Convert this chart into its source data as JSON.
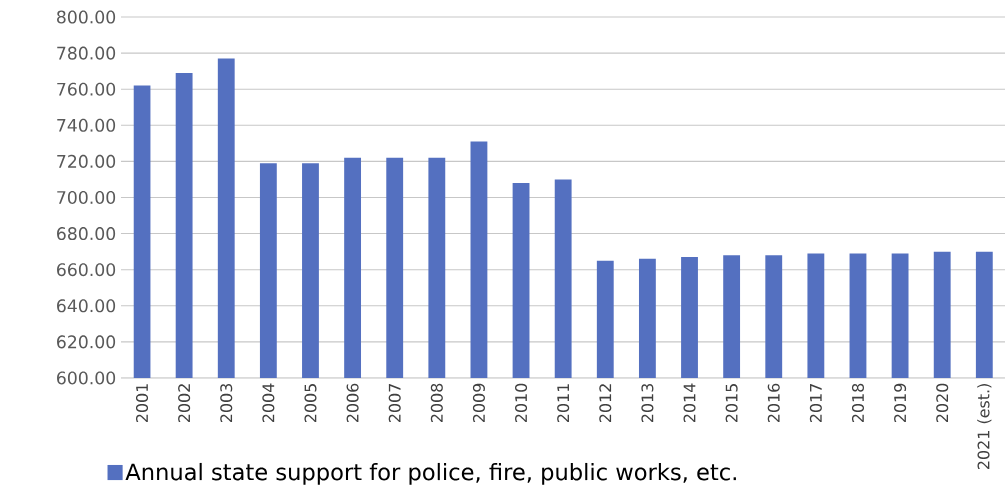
{
  "chart_data": {
    "type": "bar",
    "categories": [
      "2001",
      "2002",
      "2003",
      "2004",
      "2005",
      "2006",
      "2007",
      "2008",
      "2009",
      "2010",
      "2011",
      "2012",
      "2013",
      "2014",
      "2015",
      "2016",
      "2017",
      "2018",
      "2019",
      "2020",
      "2021 (est.)"
    ],
    "series": [
      {
        "name": "Annual state support for police, fire, public works, etc.",
        "color": "#5470c0",
        "values": [
          762,
          769,
          777,
          719,
          719,
          722,
          722,
          722,
          731,
          708,
          710,
          665,
          666,
          667,
          668,
          668,
          669,
          669,
          669,
          670,
          670
        ]
      }
    ],
    "ylim": [
      600,
      800
    ],
    "yticks": [
      {
        "value": 600,
        "label": "600.00"
      },
      {
        "value": 620,
        "label": "620.00"
      },
      {
        "value": 640,
        "label": "640.00"
      },
      {
        "value": 660,
        "label": "660.00"
      },
      {
        "value": 680,
        "label": "680.00"
      },
      {
        "value": 700,
        "label": "700.00"
      },
      {
        "value": 720,
        "label": "720.00"
      },
      {
        "value": 740,
        "label": "740.00"
      },
      {
        "value": 760,
        "label": "760.00"
      },
      {
        "value": 780,
        "label": "780.00"
      },
      {
        "value": 800,
        "label": "800.00"
      }
    ],
    "grid": "y",
    "legend": "bottom left"
  }
}
